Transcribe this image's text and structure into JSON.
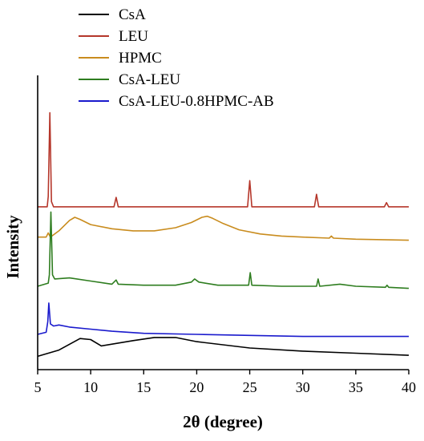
{
  "chart_data": {
    "type": "line",
    "title": "",
    "xlabel": "2θ (degree)",
    "ylabel": "Intensity",
    "xlim": [
      5,
      40
    ],
    "xticks": [
      5,
      10,
      15,
      20,
      25,
      30,
      35,
      40
    ],
    "yticks_shown": false,
    "legend_position": "top-left",
    "series": [
      {
        "name": "CsA",
        "color": "#000000",
        "points": [
          [
            5.0,
            0.2
          ],
          [
            7.0,
            0.8
          ],
          [
            9.0,
            1.9
          ],
          [
            10.0,
            1.8
          ],
          [
            11.0,
            1.2
          ],
          [
            14.0,
            1.7
          ],
          [
            16.0,
            2.0
          ],
          [
            18.0,
            2.0
          ],
          [
            20.0,
            1.6
          ],
          [
            25.0,
            1.0
          ],
          [
            30.0,
            0.7
          ],
          [
            35.0,
            0.5
          ],
          [
            40.0,
            0.3
          ]
        ]
      },
      {
        "name": "LEU",
        "color": "#b5362a",
        "points": [
          [
            5.0,
            14.5
          ],
          [
            5.9,
            14.5
          ],
          [
            6.0,
            15.5
          ],
          [
            6.15,
            23.5
          ],
          [
            6.3,
            15.0
          ],
          [
            6.5,
            14.5
          ],
          [
            12.2,
            14.5
          ],
          [
            12.4,
            15.4
          ],
          [
            12.6,
            14.5
          ],
          [
            24.8,
            14.5
          ],
          [
            25.0,
            17.0
          ],
          [
            25.2,
            14.5
          ],
          [
            31.1,
            14.5
          ],
          [
            31.3,
            15.7
          ],
          [
            31.5,
            14.5
          ],
          [
            37.7,
            14.5
          ],
          [
            37.9,
            14.9
          ],
          [
            38.1,
            14.5
          ],
          [
            40.0,
            14.5
          ]
        ]
      },
      {
        "name": "HPMC",
        "color": "#c98c1e",
        "points": [
          [
            5.0,
            11.6
          ],
          [
            5.8,
            11.6
          ],
          [
            6.0,
            12.0
          ],
          [
            6.2,
            11.6
          ],
          [
            7.0,
            12.2
          ],
          [
            8.0,
            13.2
          ],
          [
            8.5,
            13.5
          ],
          [
            9.0,
            13.3
          ],
          [
            10.0,
            12.8
          ],
          [
            12.0,
            12.4
          ],
          [
            14.0,
            12.2
          ],
          [
            16.0,
            12.2
          ],
          [
            18.0,
            12.5
          ],
          [
            19.5,
            13.0
          ],
          [
            20.5,
            13.5
          ],
          [
            21.0,
            13.6
          ],
          [
            21.5,
            13.4
          ],
          [
            22.5,
            12.9
          ],
          [
            24.0,
            12.3
          ],
          [
            26.0,
            11.9
          ],
          [
            28.0,
            11.7
          ],
          [
            30.0,
            11.6
          ],
          [
            32.5,
            11.5
          ],
          [
            32.7,
            11.7
          ],
          [
            32.9,
            11.5
          ],
          [
            35.0,
            11.4
          ],
          [
            40.0,
            11.3
          ]
        ]
      },
      {
        "name": "CsA-LEU",
        "color": "#2e7d1f",
        "points": [
          [
            5.0,
            6.9
          ],
          [
            6.0,
            7.2
          ],
          [
            6.1,
            8.0
          ],
          [
            6.25,
            14.0
          ],
          [
            6.4,
            8.0
          ],
          [
            6.6,
            7.6
          ],
          [
            8.0,
            7.7
          ],
          [
            10.0,
            7.4
          ],
          [
            12.0,
            7.1
          ],
          [
            12.4,
            7.5
          ],
          [
            12.6,
            7.1
          ],
          [
            15.0,
            7.0
          ],
          [
            18.0,
            7.0
          ],
          [
            19.5,
            7.3
          ],
          [
            19.8,
            7.6
          ],
          [
            20.2,
            7.3
          ],
          [
            22.0,
            7.0
          ],
          [
            24.9,
            7.0
          ],
          [
            25.05,
            8.2
          ],
          [
            25.2,
            7.0
          ],
          [
            28.0,
            6.9
          ],
          [
            31.3,
            6.9
          ],
          [
            31.45,
            7.6
          ],
          [
            31.6,
            6.9
          ],
          [
            33.5,
            7.1
          ],
          [
            35.0,
            6.9
          ],
          [
            37.8,
            6.8
          ],
          [
            37.95,
            7.0
          ],
          [
            38.1,
            6.8
          ],
          [
            40.0,
            6.7
          ]
        ]
      },
      {
        "name": "CsA-LEU-0.8HPMC-AB",
        "color": "#1a1acd",
        "points": [
          [
            5.0,
            2.3
          ],
          [
            5.8,
            2.5
          ],
          [
            5.95,
            3.5
          ],
          [
            6.05,
            5.3
          ],
          [
            6.2,
            3.3
          ],
          [
            6.5,
            3.1
          ],
          [
            7.0,
            3.2
          ],
          [
            8.0,
            3.0
          ],
          [
            10.0,
            2.8
          ],
          [
            12.0,
            2.6
          ],
          [
            15.0,
            2.4
          ],
          [
            20.0,
            2.3
          ],
          [
            25.0,
            2.2
          ],
          [
            30.0,
            2.1
          ],
          [
            35.0,
            2.1
          ],
          [
            40.0,
            2.1
          ]
        ]
      }
    ]
  }
}
